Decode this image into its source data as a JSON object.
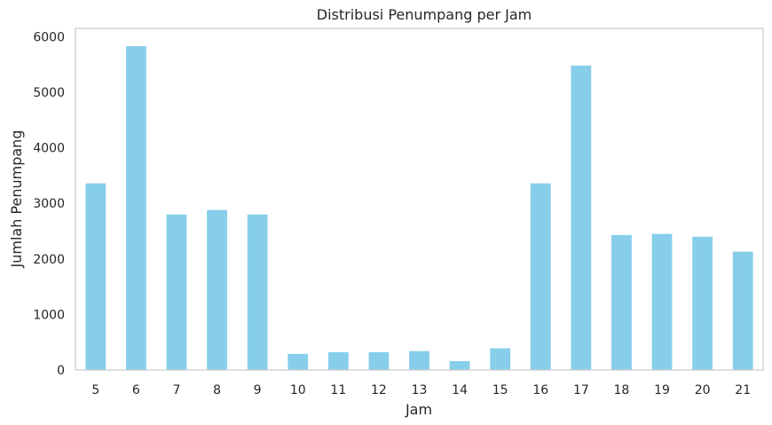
{
  "chart_data": {
    "type": "bar",
    "title": "Distribusi Penumpang per Jam",
    "xlabel": "Jam",
    "ylabel": "Jumlah Penumpang",
    "categories": [
      "5",
      "6",
      "7",
      "8",
      "9",
      "10",
      "11",
      "12",
      "13",
      "14",
      "15",
      "16",
      "17",
      "18",
      "19",
      "20",
      "21"
    ],
    "values": [
      3360,
      5830,
      2800,
      2880,
      2800,
      290,
      320,
      320,
      340,
      160,
      390,
      3360,
      5480,
      2430,
      2450,
      2400,
      2130
    ],
    "ylim": [
      0,
      6150
    ],
    "yticks": [
      "0",
      "1000",
      "2000",
      "3000",
      "4000",
      "5000",
      "6000"
    ],
    "grid": false,
    "bar_color": "#87ceeb",
    "axis_color": "#cccccc"
  }
}
